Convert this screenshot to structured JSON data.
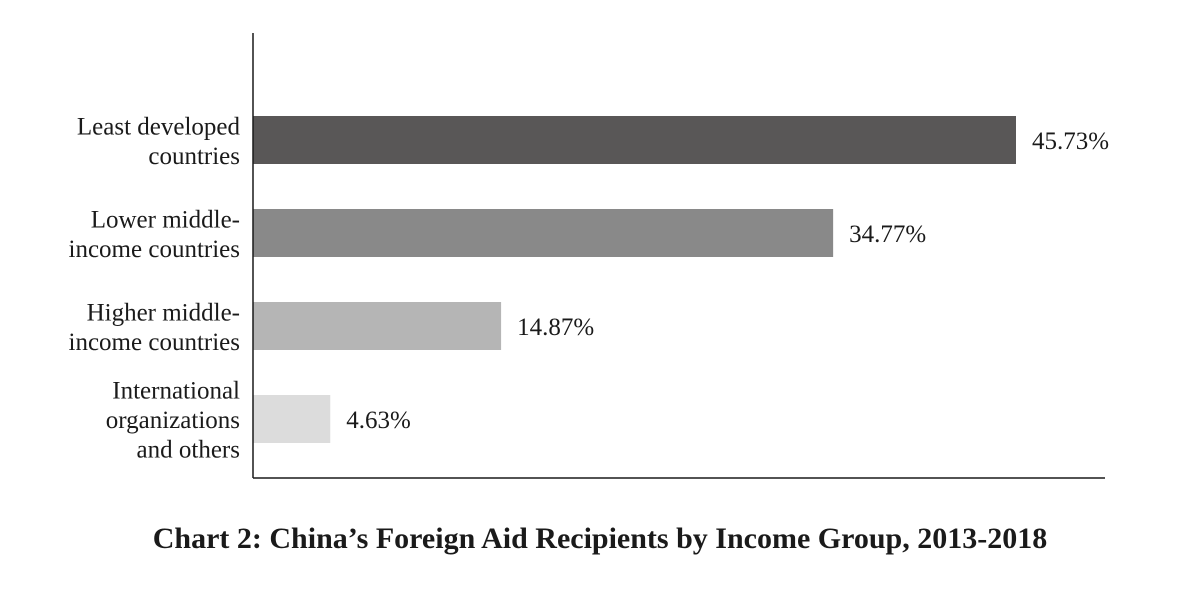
{
  "chart_data": {
    "type": "bar",
    "orientation": "horizontal",
    "title": "Chart 2: China’s Foreign Aid Recipients by Income Group, 2013-2018",
    "categories": [
      "Least developed countries",
      "Lower middle-income countries",
      "Higher middle-income countries",
      "International organizations and others"
    ],
    "category_label_lines": [
      [
        "Least developed",
        "countries"
      ],
      [
        "Lower middle-",
        "income countries"
      ],
      [
        "Higher middle-",
        "income countries"
      ],
      [
        "International",
        "organizations",
        "and others"
      ]
    ],
    "values": [
      45.73,
      34.77,
      14.87,
      4.63
    ],
    "value_labels": [
      "45.73%",
      "34.77%",
      "14.87%",
      "4.63%"
    ],
    "colors": [
      "#595757",
      "#898989",
      "#b5b5b5",
      "#dcdcdc"
    ],
    "xlabel": "",
    "ylabel": "",
    "xlim": [
      0,
      51
    ],
    "grid": false,
    "legend": "none"
  }
}
